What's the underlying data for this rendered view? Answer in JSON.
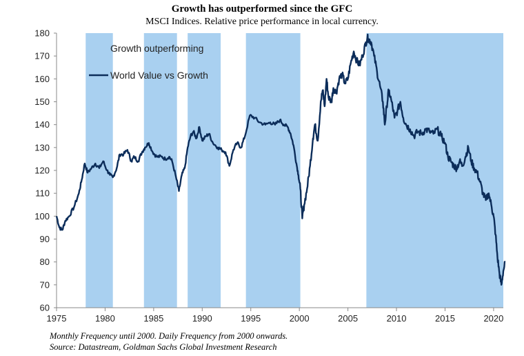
{
  "chart_data": {
    "type": "line",
    "title": "Growth has outperformed since the GFC",
    "subtitle": "MSCI Indices. Relative price performance in local currency.",
    "xlabel": "",
    "ylabel": "",
    "xlim": [
      1975,
      2021
    ],
    "ylim": [
      60,
      180
    ],
    "yticks": [
      60,
      70,
      80,
      90,
      100,
      110,
      120,
      130,
      140,
      150,
      160,
      170,
      180
    ],
    "xticks": [
      1975,
      1980,
      1985,
      1990,
      1995,
      2000,
      2005,
      2010,
      2015,
      2020
    ],
    "grid": false,
    "legend_position": "top-left",
    "legend": {
      "shade_label": "Growth outperforming",
      "line_label": "World Value vs Growth"
    },
    "shaded_periods": [
      [
        1978.0,
        1980.8
      ],
      [
        1984.0,
        1987.4
      ],
      [
        1988.5,
        1991.9
      ],
      [
        1994.5,
        2000.1
      ],
      [
        2006.9,
        2021.2
      ]
    ],
    "series": [
      {
        "name": "World Value vs Growth",
        "color": "#0c2d5a",
        "x": [
          1975.0,
          1975.3,
          1975.6,
          1975.9,
          1976.3,
          1976.8,
          1977.3,
          1977.6,
          1977.9,
          1978.2,
          1978.6,
          1979.0,
          1979.4,
          1979.8,
          1980.2,
          1980.5,
          1980.8,
          1981.2,
          1981.5,
          1981.9,
          1982.3,
          1982.7,
          1983.0,
          1983.4,
          1983.8,
          1984.1,
          1984.5,
          1984.9,
          1985.3,
          1985.8,
          1986.2,
          1986.6,
          1986.9,
          1987.3,
          1987.6,
          1987.9,
          1988.2,
          1988.5,
          1988.8,
          1989.1,
          1989.4,
          1989.7,
          1990.0,
          1990.4,
          1990.7,
          1991.1,
          1991.6,
          1992.0,
          1992.4,
          1992.8,
          1993.2,
          1993.6,
          1994.0,
          1994.4,
          1994.9,
          1995.4,
          1995.9,
          1996.5,
          1997.0,
          1997.5,
          1998.0,
          1998.4,
          1998.8,
          1999.1,
          1999.4,
          1999.7,
          1999.9,
          2000.1,
          2000.3,
          2000.5,
          2000.8,
          2001.1,
          2001.4,
          2001.6,
          2001.9,
          2002.2,
          2002.4,
          2002.6,
          2002.8,
          2003.0,
          2003.3,
          2003.5,
          2003.8,
          2004.1,
          2004.4,
          2004.7,
          2005.0,
          2005.3,
          2005.6,
          2005.9,
          2006.2,
          2006.5,
          2006.8,
          2007.0,
          2007.2,
          2007.4,
          2007.7,
          2008.0,
          2008.3,
          2008.6,
          2008.8,
          2009.0,
          2009.2,
          2009.5,
          2009.8,
          2010.1,
          2010.4,
          2010.7,
          2011.0,
          2011.4,
          2011.8,
          2012.2,
          2012.6,
          2013.0,
          2013.4,
          2013.8,
          2014.2,
          2014.6,
          2015.0,
          2015.3,
          2015.6,
          2015.9,
          2016.2,
          2016.5,
          2016.8,
          2017.1,
          2017.4,
          2017.7,
          2018.0,
          2018.3,
          2018.6,
          2018.9,
          2019.2,
          2019.5,
          2019.8,
          2020.0,
          2020.2,
          2020.4,
          2020.6,
          2020.8,
          2021.0,
          2021.2
        ],
        "values": [
          100,
          95,
          94,
          98,
          100,
          104,
          110,
          116,
          123,
          119,
          121,
          123,
          121,
          124,
          120,
          118,
          117,
          121,
          127,
          127,
          129,
          124,
          126,
          124,
          128,
          130,
          132,
          128,
          126,
          126,
          125,
          126,
          124,
          117,
          111,
          118,
          121,
          130,
          135,
          137,
          134,
          139,
          133,
          135,
          136,
          132,
          130,
          129,
          128,
          122,
          129,
          132,
          130,
          135,
          144,
          143,
          141,
          140,
          141,
          140,
          142,
          140,
          139,
          136,
          131,
          123,
          118,
          112,
          99,
          105,
          112,
          122,
          134,
          140,
          133,
          150,
          155,
          148,
          160,
          152,
          150,
          156,
          154,
          160,
          162,
          158,
          160,
          167,
          172,
          168,
          166,
          170,
          175,
          178,
          177,
          176,
          170,
          163,
          157,
          150,
          140,
          148,
          155,
          150,
          143,
          146,
          150,
          143,
          140,
          138,
          135,
          137,
          136,
          138,
          137,
          136,
          138,
          135,
          132,
          126,
          124,
          122,
          121,
          124,
          122,
          126,
          130,
          124,
          121,
          119,
          115,
          110,
          107,
          110,
          104,
          100,
          92,
          82,
          75,
          70,
          76,
          80
        ]
      }
    ]
  },
  "footnotes": {
    "line1": "Monthly Frequency until 2000. Daily Frequency from 2000 onwards.",
    "line2": "Source: Datastream, Goldman Sachs Global Investment Research"
  }
}
